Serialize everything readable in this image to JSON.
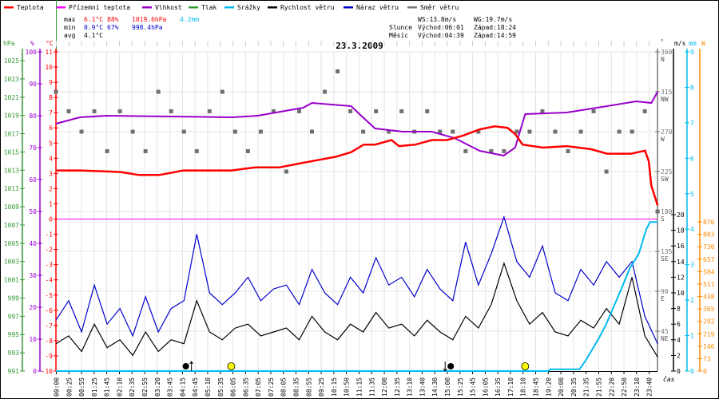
{
  "legend": [
    {
      "label": "Teplota",
      "color": "#ff0000"
    },
    {
      "label": "Přízemní teplota",
      "color": "#ff00ff"
    },
    {
      "label": "Vlhkost",
      "color": "#9900cc"
    },
    {
      "label": "Tlak",
      "color": "#339933"
    },
    {
      "label": "Srážky",
      "color": "#00bbee"
    },
    {
      "label": "Rychlost větru",
      "color": "#000000"
    },
    {
      "label": "Náraz větru",
      "color": "#0000cc"
    },
    {
      "label": "Směr větru",
      "color": "#777777"
    }
  ],
  "stats": {
    "max_label": "max",
    "min_label": "min",
    "avg_label": "avg",
    "max_temp": "6.1°C",
    "max_hum": "88%",
    "max_press": "1019.6hPa",
    "max_rain": "4.2mm",
    "min_temp": "0.9°C",
    "min_hum": "67%",
    "min_press": "998.4hPa",
    "avg_temp": "4.1°C",
    "ws": "WS:13.8m/s",
    "wg": "WG:19.7m/s",
    "sun_label": "Slunce",
    "sun_rise": "Východ:06:01",
    "sun_set": "Západ:18:24",
    "moon_label": "Měsíc",
    "moon_rise": "Východ:04:39",
    "moon_set": "Západ:14:59"
  },
  "chart_data": {
    "type": "line",
    "title": "23.3.2009",
    "xlabel": "čas",
    "x_tick_labels": [
      "00:00",
      "00:25",
      "00:55",
      "01:25",
      "01:45",
      "02:10",
      "02:35",
      "02:55",
      "03:20",
      "03:45",
      "04:15",
      "04:45",
      "05:10",
      "05:35",
      "06:05",
      "06:35",
      "07:05",
      "07:25",
      "08:05",
      "08:35",
      "08:55",
      "09:25",
      "10:15",
      "10:50",
      "11:15",
      "11:35",
      "12:00",
      "12:35",
      "13:10",
      "13:40",
      "14:30",
      "15:00",
      "15:25",
      "15:45",
      "16:05",
      "16:35",
      "17:10",
      "18:10",
      "18:45",
      "19:20",
      "20:00",
      "20:35",
      "21:35",
      "21:55",
      "22:20",
      "22:50",
      "23:10",
      "23:40"
    ],
    "axes": {
      "pressure": {
        "unit": "hPa",
        "range": [
          991,
          1025
        ],
        "ticks": [
          991,
          993,
          995,
          997,
          999,
          1001,
          1003,
          1005,
          1007,
          1009,
          1011,
          1013,
          1015,
          1017,
          1019,
          1021,
          1023,
          1025
        ]
      },
      "humidity": {
        "unit": "%",
        "range": [
          0,
          100
        ],
        "ticks": [
          0,
          10,
          20,
          30,
          40,
          50,
          60,
          70,
          80,
          90,
          100
        ]
      },
      "temperature": {
        "unit": "°C",
        "range": [
          -10,
          11
        ],
        "ticks": [
          -10,
          -9,
          -8,
          -7,
          -6,
          -5,
          -4,
          -3,
          -2,
          -1,
          0,
          1,
          2,
          3,
          4,
          5,
          6,
          7,
          8,
          9,
          10,
          11
        ]
      },
      "direction": {
        "unit": "°",
        "range": [
          0,
          360
        ],
        "ticks": [
          {
            "v": 45,
            "l": "45",
            "d": "NE"
          },
          {
            "v": 90,
            "l": "90",
            "d": "E"
          },
          {
            "v": 135,
            "l": "135",
            "d": "SE"
          },
          {
            "v": 180,
            "l": "180",
            "d": "S"
          },
          {
            "v": 225,
            "l": "225",
            "d": "SW"
          },
          {
            "v": 270,
            "l": "270",
            "d": "W"
          },
          {
            "v": 315,
            "l": "315",
            "d": "NW"
          },
          {
            "v": 360,
            "l": "360",
            "d": "N"
          }
        ]
      },
      "wind": {
        "unit": "m/s",
        "range": [
          0,
          20
        ],
        "ticks": [
          0,
          2,
          4,
          6,
          8,
          10,
          12,
          14,
          16,
          18,
          20
        ]
      },
      "rain": {
        "unit": "mm",
        "range": [
          0,
          9
        ],
        "ticks": [
          0,
          1,
          2,
          3,
          4,
          5,
          6,
          7,
          8,
          9
        ]
      },
      "solar": {
        "unit": "W",
        "range": [
          0,
          876
        ],
        "ticks": [
          0,
          73,
          146,
          219,
          292,
          365,
          438,
          511,
          584,
          657,
          730,
          803,
          876
        ]
      }
    },
    "series": {
      "temperature": [
        [
          0,
          3.2
        ],
        [
          1.9,
          3.2
        ],
        [
          5.1,
          3.1
        ],
        [
          6.6,
          2.9
        ],
        [
          8.2,
          2.9
        ],
        [
          10.1,
          3.2
        ],
        [
          12,
          3.2
        ],
        [
          13.9,
          3.2
        ],
        [
          15.8,
          3.4
        ],
        [
          17.7,
          3.4
        ],
        [
          19.6,
          3.7
        ],
        [
          20.9,
          3.9
        ],
        [
          22.2,
          4.1
        ],
        [
          23.4,
          4.4
        ],
        [
          24.4,
          4.9
        ],
        [
          25.3,
          4.9
        ],
        [
          26.6,
          5.2
        ],
        [
          27.2,
          4.8
        ],
        [
          28.5,
          4.9
        ],
        [
          29.8,
          5.2
        ],
        [
          31.0,
          5.2
        ],
        [
          32.3,
          5.5
        ],
        [
          33.6,
          5.9
        ],
        [
          34.8,
          6.1
        ],
        [
          35.8,
          6.0
        ],
        [
          36.4,
          5.6
        ],
        [
          37.0,
          4.9
        ],
        [
          38.6,
          4.7
        ],
        [
          40.5,
          4.8
        ],
        [
          42.4,
          4.6
        ],
        [
          43.7,
          4.3
        ],
        [
          45.6,
          4.3
        ],
        [
          46.7,
          4.5
        ],
        [
          47.0,
          3.8
        ],
        [
          47.2,
          2.2
        ],
        [
          47.7,
          0.9
        ]
      ],
      "apparent_temperature": [
        [
          0,
          0
        ],
        [
          47.7,
          0
        ]
      ],
      "humidity": [
        [
          0,
          77.5
        ],
        [
          1.9,
          79.5
        ],
        [
          4,
          80
        ],
        [
          14,
          79.5
        ],
        [
          16,
          80
        ],
        [
          19.6,
          82.5
        ],
        [
          20.3,
          84
        ],
        [
          23.4,
          83
        ],
        [
          24.2,
          80
        ],
        [
          25.3,
          76
        ],
        [
          27.5,
          75
        ],
        [
          29.8,
          75
        ],
        [
          31.6,
          73
        ],
        [
          33.6,
          69
        ],
        [
          35.5,
          67.5
        ],
        [
          36.4,
          70
        ],
        [
          37.2,
          80.5
        ],
        [
          40.5,
          81
        ],
        [
          43.7,
          83
        ],
        [
          46,
          84.5
        ],
        [
          47.2,
          84
        ],
        [
          47.7,
          87.5
        ]
      ],
      "rain": [
        [
          0,
          0
        ],
        [
          39.0,
          0
        ],
        [
          39.2,
          0.05
        ],
        [
          41.5,
          0.05
        ],
        [
          42.0,
          0.3
        ],
        [
          42.5,
          0.6
        ],
        [
          43.0,
          0.9
        ],
        [
          43.6,
          1.3
        ],
        [
          44.2,
          1.8
        ],
        [
          44.8,
          2.3
        ],
        [
          45.5,
          2.9
        ],
        [
          46.2,
          3.3
        ],
        [
          46.8,
          4.0
        ],
        [
          47.1,
          4.2
        ],
        [
          47.7,
          4.2
        ]
      ],
      "wind_speed": [
        3.5,
        4.5,
        2.5,
        6.0,
        3.0,
        4.0,
        2.0,
        5.0,
        2.5,
        4.0,
        3.5,
        9.0,
        5.0,
        4.0,
        5.5,
        6.0,
        4.5,
        5.0,
        5.5,
        4.0,
        7.0,
        5.0,
        4.0,
        6.0,
        5.0,
        7.5,
        5.5,
        6.0,
        4.5,
        6.5,
        5.0,
        4.0,
        7.0,
        5.5,
        8.5,
        13.8,
        9.0,
        6.0,
        7.5,
        5.0,
        4.5,
        6.5,
        5.5,
        8.0,
        6.0,
        12.0,
        4.5,
        1.8
      ],
      "wind_gust": [
        6.5,
        9.0,
        5.0,
        11.0,
        6.0,
        8.0,
        4.5,
        9.5,
        5.0,
        8.0,
        9.0,
        17.5,
        10.0,
        8.5,
        10.0,
        12.0,
        9.0,
        10.5,
        11.0,
        8.5,
        13.0,
        10.0,
        8.5,
        12.0,
        10.0,
        14.5,
        11.0,
        12.0,
        9.5,
        13.0,
        10.5,
        9.0,
        16.5,
        11.0,
        15.0,
        19.7,
        14.0,
        12.0,
        16.0,
        10.0,
        9.0,
        13.0,
        11.0,
        14.0,
        12.0,
        14.0,
        7.0,
        3.5
      ],
      "wind_direction": [
        315,
        293,
        270,
        293,
        248,
        293,
        270,
        248,
        315,
        293,
        270,
        248,
        293,
        315,
        270,
        248,
        270,
        293,
        225,
        293,
        270,
        315,
        338,
        293,
        270,
        293,
        270,
        293,
        270,
        293,
        270,
        270,
        248,
        270,
        248,
        248,
        270,
        270,
        293,
        270,
        248,
        270,
        293,
        225,
        270,
        270,
        293,
        180
      ]
    },
    "events": [
      {
        "type": "moonrise",
        "time": "04:39",
        "slot": 10.3
      },
      {
        "type": "sunrise",
        "time": "06:01",
        "slot": 13.9
      },
      {
        "type": "moonset",
        "time": "14:59",
        "slot": 31.3
      },
      {
        "type": "sunset",
        "time": "18:24",
        "slot": 37.2
      }
    ]
  }
}
